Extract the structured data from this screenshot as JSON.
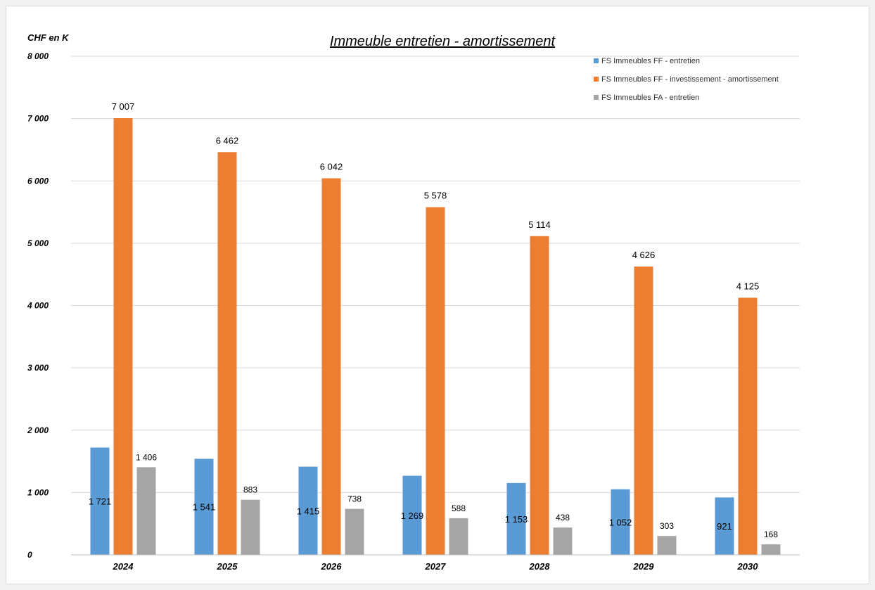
{
  "chart_data": {
    "type": "bar",
    "title": "Immeuble entretien - amortissement",
    "unit_label": "CHF en K",
    "categories": [
      "2024",
      "2025",
      "2026",
      "2027",
      "2028",
      "2029",
      "2030"
    ],
    "ylim": [
      0,
      8000
    ],
    "y_ticks": [
      0,
      1000,
      2000,
      3000,
      4000,
      5000,
      6000,
      7000,
      8000
    ],
    "y_tick_labels": [
      "0",
      "1 000",
      "2 000",
      "3 000",
      "4 000",
      "5 000",
      "6 000",
      "7 000",
      "8 000"
    ],
    "grid": true,
    "legend_position": "top-right",
    "series": [
      {
        "name": "FS Immeubles FF - entretien",
        "color": "#5b9bd5",
        "values": [
          1721,
          1541,
          1415,
          1269,
          1153,
          1052,
          921
        ],
        "labels": [
          "1 721",
          "1 541",
          "1 415",
          "1 269",
          "1 153",
          "1 052",
          "921"
        ]
      },
      {
        "name": "FS Immeubles FF - investissement - amortissement",
        "color": "#ed7d31",
        "values": [
          7007,
          6462,
          6042,
          5578,
          5114,
          4626,
          4125
        ],
        "labels": [
          "7 007",
          "6 462",
          "6 042",
          "5 578",
          "5 114",
          "4 626",
          "4 125"
        ]
      },
      {
        "name": "FS Immeubles FA - entretien",
        "color": "#a5a5a5",
        "values": [
          1406,
          883,
          738,
          588,
          438,
          303,
          168
        ],
        "labels": [
          "1 406",
          "883",
          "738",
          "588",
          "438",
          "303",
          "168"
        ]
      }
    ]
  }
}
